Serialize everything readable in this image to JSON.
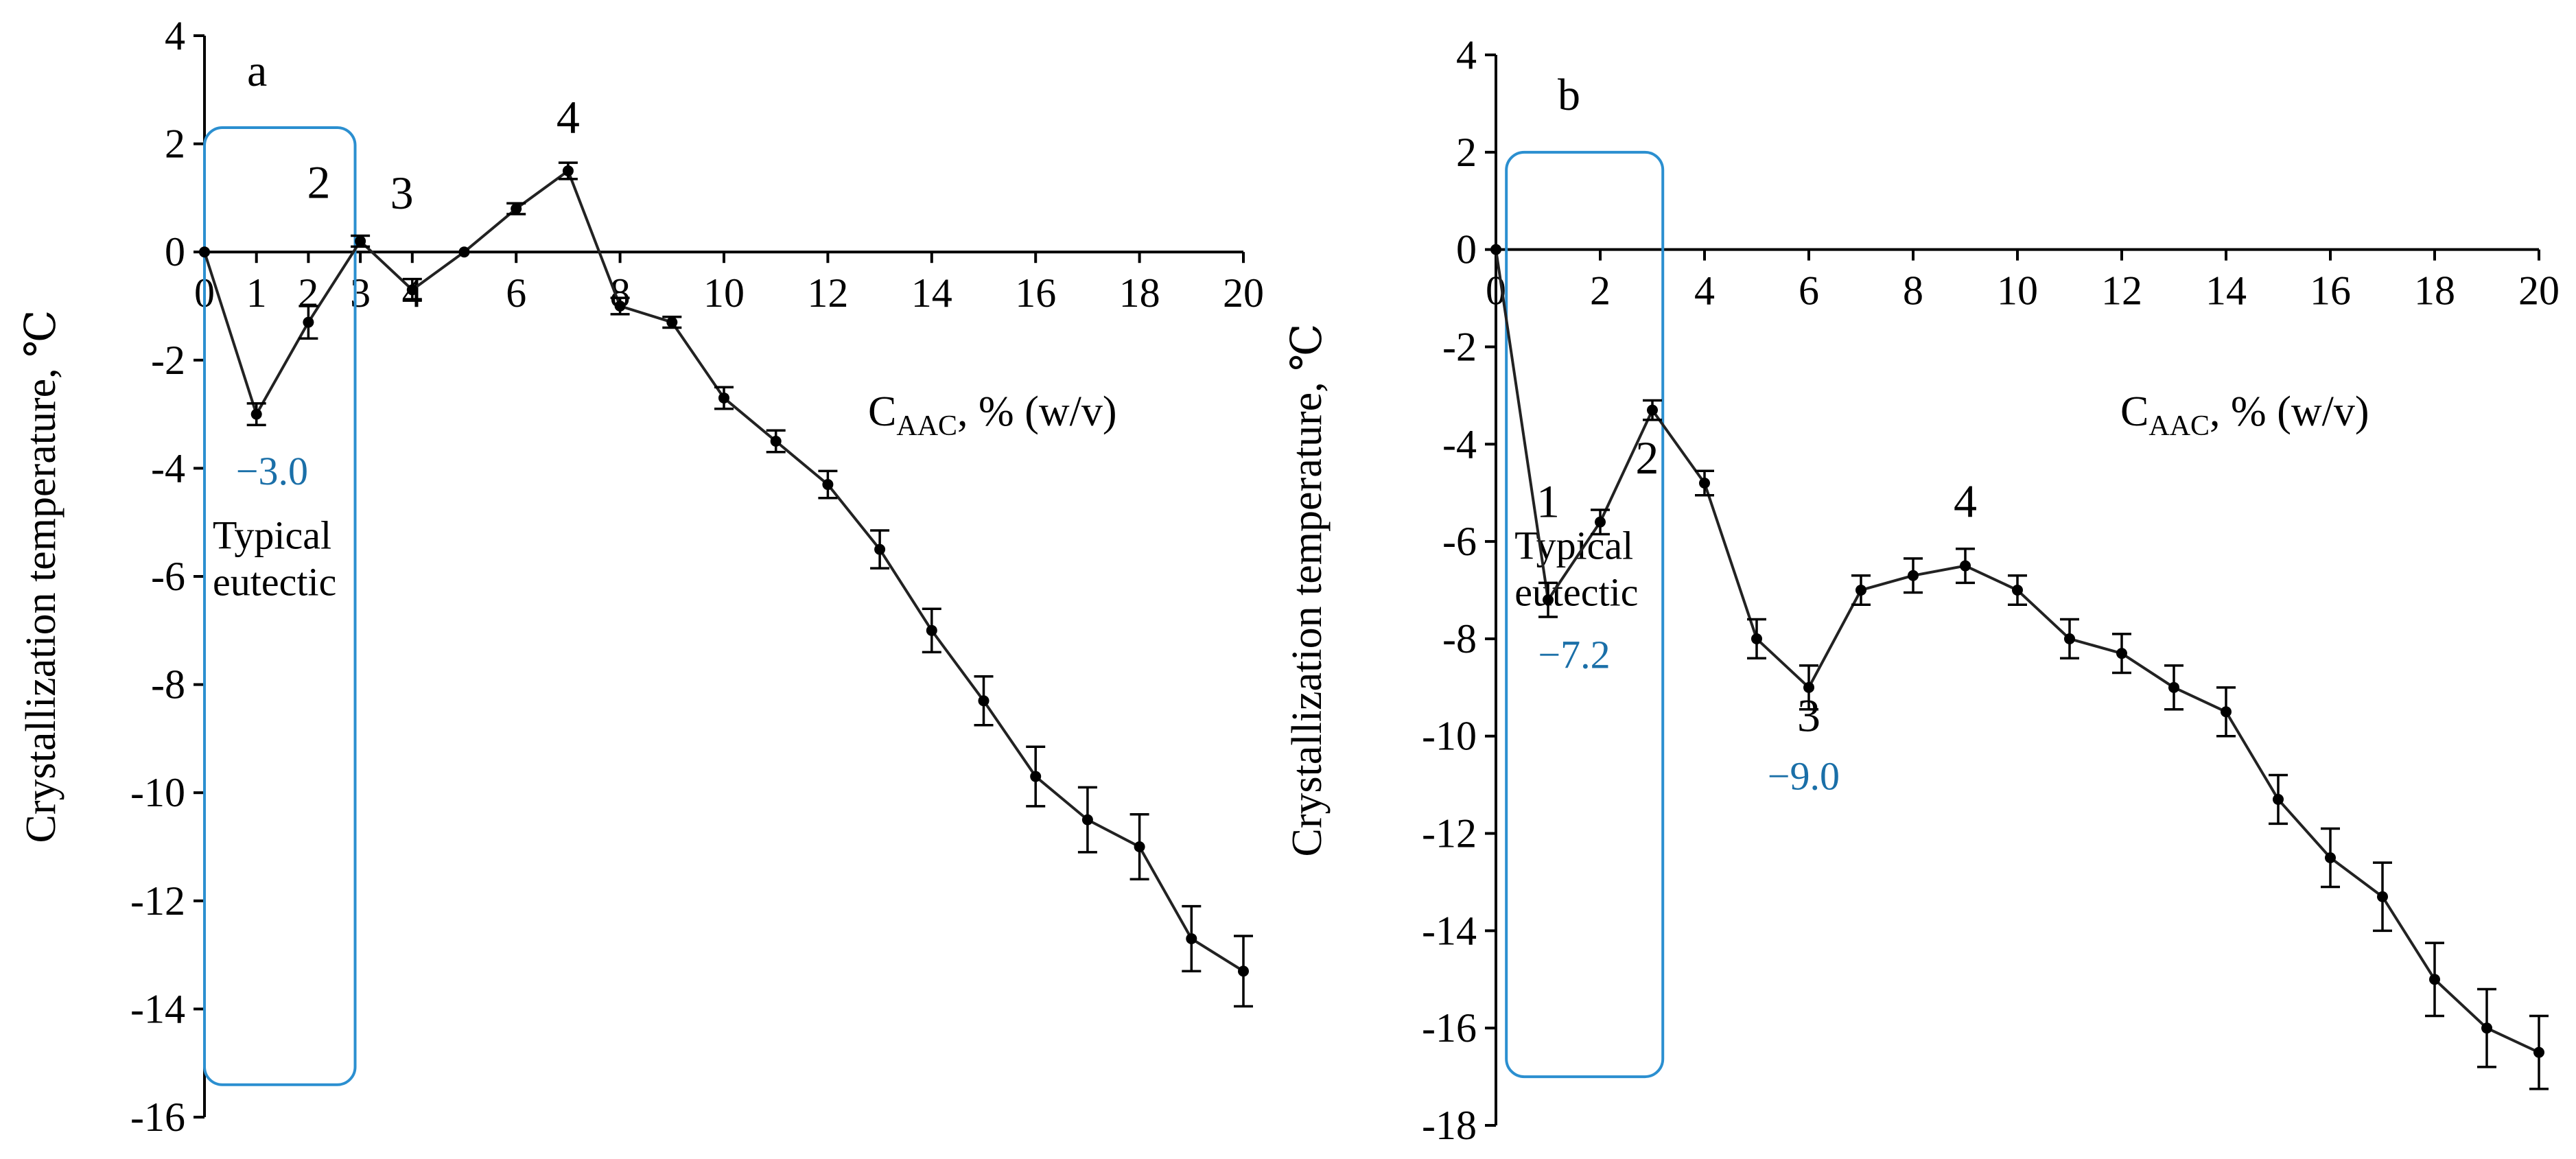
{
  "chart_data": [
    {
      "type": "line",
      "panel": "a",
      "xlabel": {
        "base": "C",
        "sub": "AAC",
        "rest": ", % (w/v)"
      },
      "ylabel": "Crystallization  temperature, ℃",
      "xlim": [
        0,
        20
      ],
      "ylim": [
        -16,
        4
      ],
      "xticks": [
        0,
        1,
        2,
        3,
        4,
        6,
        8,
        10,
        12,
        14,
        16,
        18,
        20
      ],
      "yticks": [
        4,
        2,
        0,
        -2,
        -4,
        -6,
        -8,
        -10,
        -12,
        -14,
        -16
      ],
      "series": [
        {
          "x": [
            0,
            1,
            2,
            3,
            4,
            5,
            6,
            7,
            8,
            9,
            10,
            11,
            12,
            13,
            14,
            15,
            16,
            17,
            18,
            19,
            20
          ],
          "y": [
            0,
            -3.0,
            -1.3,
            0.2,
            -0.7,
            0,
            0.8,
            1.5,
            -1.0,
            -1.3,
            -2.7,
            -3.5,
            -4.3,
            -5.5,
            -7.0,
            -8.3,
            -9.7,
            -10.5,
            -11.0,
            -12.7,
            -13.3
          ],
          "err": [
            0,
            0.2,
            0.3,
            0.1,
            0.2,
            0,
            0.1,
            0.15,
            0.15,
            0.1,
            0.2,
            0.2,
            0.25,
            0.35,
            0.4,
            0.45,
            0.55,
            0.6,
            0.6,
            0.6,
            0.65
          ]
        }
      ],
      "annotations": [
        {
          "text": "2",
          "x": 2.2,
          "y": 1.0
        },
        {
          "text": "3",
          "x": 3.8,
          "y": 0.8
        },
        {
          "text": "4",
          "x": 7.0,
          "y": 2.2
        },
        {
          "text": "−3.0",
          "x": 1.3,
          "y": -4.3,
          "color": "#1a6fa8"
        }
      ],
      "box": {
        "x0": 0,
        "x1": 2.9,
        "y0": 2.3,
        "y1": -15.4,
        "color": "#2b8fd0",
        "text1": "Typical",
        "text2": "eutectic"
      }
    },
    {
      "type": "line",
      "panel": "b",
      "xlabel": {
        "base": "C",
        "sub": "AAC",
        "rest": ", % (w/v)"
      },
      "ylabel": "Crystallization  temperature, ℃",
      "xlim": [
        0,
        20
      ],
      "ylim": [
        -18,
        4
      ],
      "xticks": [
        0,
        2,
        4,
        6,
        8,
        10,
        12,
        14,
        16,
        18,
        20
      ],
      "yticks": [
        4,
        2,
        0,
        -2,
        -4,
        -6,
        -8,
        -10,
        -12,
        -14,
        -16,
        -18
      ],
      "series": [
        {
          "x": [
            0,
            1,
            2,
            3,
            4,
            5,
            6,
            7,
            8,
            9,
            10,
            11,
            12,
            13,
            14,
            15,
            16,
            17,
            18,
            19,
            20
          ],
          "y": [
            0,
            -7.2,
            -5.6,
            -3.3,
            -4.8,
            -8.0,
            -9.0,
            -7.0,
            -6.7,
            -6.5,
            -7.0,
            -8.0,
            -8.3,
            -9.0,
            -9.5,
            -11.3,
            -12.5,
            -13.3,
            -15.0,
            -16.0,
            -16.5
          ],
          "err": [
            0,
            0.35,
            0.25,
            0.2,
            0.25,
            0.4,
            0.45,
            0.3,
            0.35,
            0.35,
            0.3,
            0.4,
            0.4,
            0.45,
            0.5,
            0.5,
            0.6,
            0.7,
            0.75,
            0.8,
            0.75
          ]
        }
      ],
      "annotations": [
        {
          "text": "1",
          "x": 1.0,
          "y": -5.5
        },
        {
          "text": "2",
          "x": 2.9,
          "y": -4.6
        },
        {
          "text": "3",
          "x": 6.0,
          "y": -9.9
        },
        {
          "text": "4",
          "x": 9.0,
          "y": -5.5
        },
        {
          "text": "−7.2",
          "x": 1.5,
          "y": -8.6,
          "color": "#1a6fa8"
        },
        {
          "text": "−9.0",
          "x": 5.9,
          "y": -11.1,
          "color": "#1a6fa8"
        }
      ],
      "box": {
        "x0": 0.2,
        "x1": 3.2,
        "y0": 2.0,
        "y1": -17.0,
        "color": "#2b8fd0",
        "text1": "Typical",
        "text2": "eutectic"
      }
    }
  ]
}
